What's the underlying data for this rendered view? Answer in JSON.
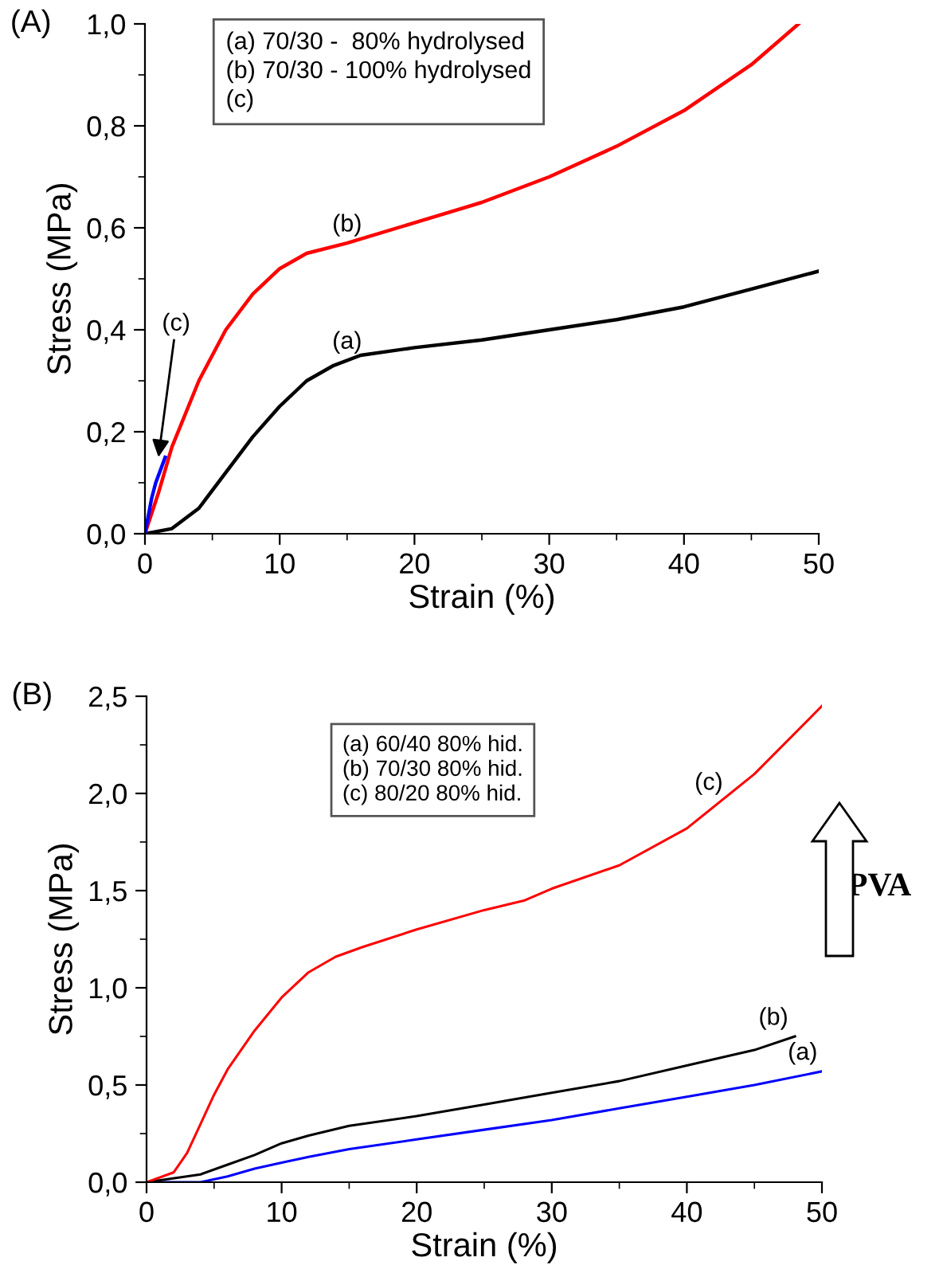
{
  "chart_data": [
    {
      "type": "line",
      "title": "(A)",
      "xlabel": "Strain (%)",
      "ylabel": "Stress (MPa)",
      "xlim": [
        0,
        50
      ],
      "ylim": [
        0,
        1.0
      ],
      "xticks": [
        0,
        10,
        20,
        30,
        40,
        50
      ],
      "yticks": [
        {
          "value": 0,
          "label": "0,0"
        },
        {
          "value": 0.2,
          "label": "0,2"
        },
        {
          "value": 0.4,
          "label": "0,4"
        },
        {
          "value": 0.6,
          "label": "0,6"
        },
        {
          "value": 0.8,
          "label": "0,8"
        },
        {
          "value": 1.0,
          "label": "1,0"
        }
      ],
      "grid": false,
      "series": [
        {
          "color": "#000000",
          "x": [
            0,
            2,
            4,
            6,
            8,
            10,
            12,
            14,
            16,
            20,
            25,
            30,
            35,
            40,
            45,
            50
          ],
          "values": [
            0,
            0.01,
            0.05,
            0.12,
            0.19,
            0.25,
            0.3,
            0.33,
            0.35,
            0.365,
            0.38,
            0.4,
            0.42,
            0.445,
            0.48,
            0.515
          ]
        },
        {
          "color": "#ff0000",
          "x": [
            0,
            1,
            2,
            4,
            6,
            8,
            10,
            12,
            15,
            20,
            25,
            30,
            35,
            40,
            45,
            48.5
          ],
          "values": [
            0,
            0.08,
            0.17,
            0.3,
            0.4,
            0.47,
            0.52,
            0.55,
            0.57,
            0.61,
            0.65,
            0.7,
            0.76,
            0.83,
            0.92,
            1.0
          ]
        },
        {
          "color": "#0000ff",
          "x": [
            0,
            0.5,
            0.8,
            1.5
          ],
          "values": [
            0,
            0.07,
            0.1,
            0.15
          ]
        }
      ],
      "annotations": [
        "(a) 70/30 -  80% hydrolysed\n(b) 70/30 - 100% hydrolysed\n(c)",
        {
          "text": "(a)",
          "x": 15,
          "y": 0.34
        },
        {
          "text": "(b)",
          "x": 15,
          "y": 0.57
        },
        {
          "text": "(c)",
          "x": 1,
          "y": 0.15
        }
      ]
    },
    {
      "type": "line",
      "title": "(B)",
      "xlabel": "Strain (%)",
      "ylabel": "Stress (MPa)",
      "xlim": [
        0,
        50
      ],
      "ylim": [
        0,
        2.5
      ],
      "xticks": [
        0,
        10,
        20,
        30,
        40,
        50
      ],
      "yticks": [
        {
          "value": 0,
          "label": "0,0"
        },
        {
          "value": 0.5,
          "label": "0,5"
        },
        {
          "value": 1.0,
          "label": "1,0"
        },
        {
          "value": 1.5,
          "label": "1,5"
        },
        {
          "value": 2.0,
          "label": "2,0"
        },
        {
          "value": 2.5,
          "label": "2,5"
        }
      ],
      "grid": false,
      "series": [
        {
          "color": "#0000ff",
          "x": [
            0,
            4,
            6,
            8,
            10,
            12,
            15,
            20,
            25,
            30,
            35,
            40,
            45,
            50
          ],
          "values": [
            0,
            0.0,
            0.03,
            0.07,
            0.1,
            0.13,
            0.17,
            0.22,
            0.27,
            0.32,
            0.38,
            0.44,
            0.5,
            0.57
          ]
        },
        {
          "color": "#000000",
          "x": [
            0,
            4,
            6,
            8,
            10,
            12,
            15,
            20,
            25,
            30,
            35,
            40,
            45,
            48
          ],
          "values": [
            0,
            0.04,
            0.09,
            0.14,
            0.2,
            0.24,
            0.29,
            0.34,
            0.4,
            0.46,
            0.52,
            0.6,
            0.68,
            0.75
          ]
        },
        {
          "color": "#ff0000",
          "x": [
            0,
            2,
            3,
            4,
            5,
            6,
            8,
            10,
            12,
            14,
            16,
            20,
            25,
            28,
            30,
            35,
            40,
            45,
            50
          ],
          "values": [
            0,
            0.05,
            0.15,
            0.3,
            0.45,
            0.58,
            0.78,
            0.95,
            1.08,
            1.16,
            1.21,
            1.3,
            1.4,
            1.45,
            1.51,
            1.63,
            1.82,
            2.1,
            2.45
          ]
        }
      ],
      "annotations": [
        "(a) 60/40 80% hid.\n(b) 70/30 80% hid.\n(c) 80/20 80% hid.",
        {
          "text": "(c)",
          "x": 43,
          "y": 1.97
        },
        {
          "text": "(b)",
          "x": 48,
          "y": 0.75
        },
        {
          "text": "(a)",
          "x": 50,
          "y": 0.57
        },
        "PVA"
      ]
    }
  ]
}
